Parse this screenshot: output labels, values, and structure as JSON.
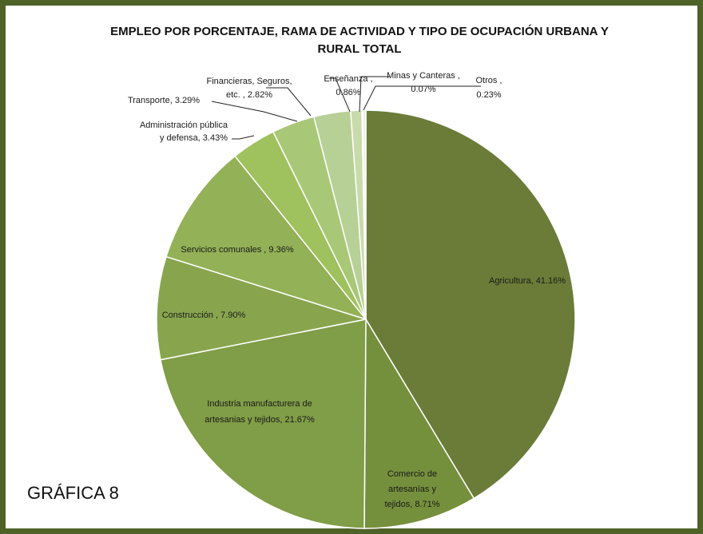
{
  "chart_data": {
    "type": "pie",
    "title": [
      "EMPLEO POR PORCENTAJE, RAMA DE ACTIVIDAD Y TIPO DE OCUPACIÓN URBANA Y",
      "RURAL TOTAL"
    ],
    "caption": "GRÁFICA 8",
    "categories": [
      "Agricultura",
      "Comercio de artesanías y tejidos",
      "Industria manufacturera de artesanias y tejidos",
      "Construcción",
      "Servicios comunales",
      "Administración pública y defensa",
      "Transporte",
      "Financieras, Seguros, etc.",
      "Enseñanza",
      "Minas y Canteras",
      "Otros"
    ],
    "values": [
      41.16,
      8.71,
      21.67,
      7.9,
      9.36,
      3.43,
      3.29,
      2.82,
      0.86,
      0.07,
      0.23
    ],
    "labels": [
      [
        "Agricultura, 41.16%"
      ],
      [
        "Comercio de",
        "artesanías y",
        "tejidos, 8.71%"
      ],
      [
        "Industria manufacturera  de",
        "artesanias y tejidos, 21.67%"
      ],
      [
        "Construcción  , 7.90%"
      ],
      [
        "Servicios comunales  , 9.36%"
      ],
      [
        "Administración pública",
        "y defensa, 3.43%"
      ],
      [
        "Transporte, 3.29%"
      ],
      [
        "Financieras, Seguros,",
        "etc. , 2.82%"
      ],
      [
        "Enseñanza ,",
        "0.86%"
      ],
      [
        "Minas y Canteras  ,",
        "0.07%"
      ],
      [
        "Otros ,",
        "0.23%"
      ]
    ],
    "colors": [
      "#6a7c38",
      "#75903c",
      "#809d47",
      "#88a54e",
      "#93b156",
      "#9fc15e",
      "#a9c877",
      "#b7d095",
      "#c8dcab",
      "#dce8c8",
      "#e9f0dc"
    ],
    "border_color": "#4f6228"
  }
}
